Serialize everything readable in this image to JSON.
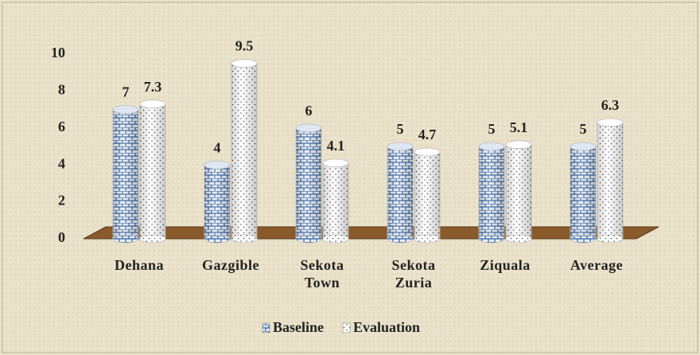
{
  "chart_data": {
    "type": "bar",
    "categories": [
      "Dehana",
      "Gazgible",
      "Sekota Town",
      "Sekota Zuria",
      "Ziquala",
      "Average"
    ],
    "series": [
      {
        "name": "Baseline",
        "color": "#2f5e9e",
        "values": [
          7,
          4,
          6,
          5,
          5,
          5
        ]
      },
      {
        "name": "Evaluation",
        "color": "#555555",
        "values": [
          7.3,
          9.5,
          4.1,
          4.7,
          5.1,
          6.3
        ]
      }
    ],
    "ylim": [
      0,
      10
    ],
    "yticks": [
      0,
      2,
      4,
      6,
      8,
      10
    ],
    "legend": "bottom"
  }
}
